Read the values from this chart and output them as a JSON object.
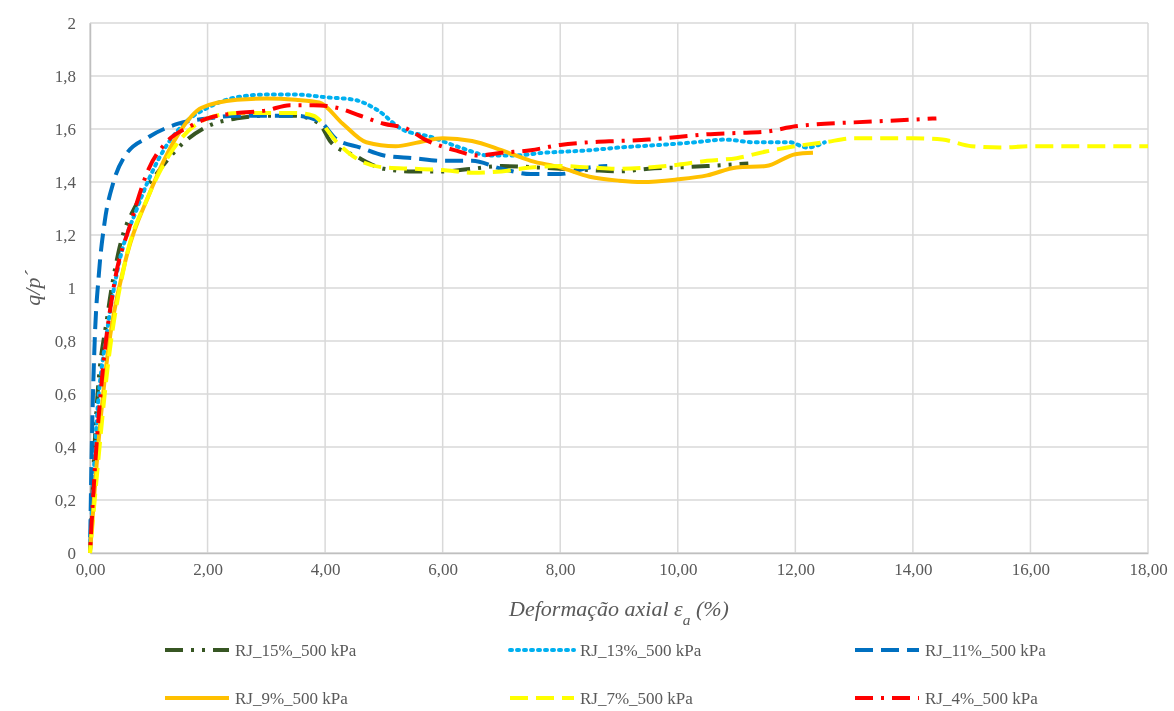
{
  "chart_data": {
    "type": "line",
    "xlabel": "Deformação axial ε$_{a}$ (%)",
    "ylabel": "q/p´",
    "xlim": [
      0,
      18
    ],
    "ylim": [
      0,
      2
    ],
    "xticks": [
      {
        "value": 0,
        "label": "0,00"
      },
      {
        "value": 2,
        "label": "2,00"
      },
      {
        "value": 4,
        "label": "4,00"
      },
      {
        "value": 6,
        "label": "6,00"
      },
      {
        "value": 8,
        "label": "8,00"
      },
      {
        "value": 10,
        "label": "10,00"
      },
      {
        "value": 12,
        "label": "12,00"
      },
      {
        "value": 14,
        "label": "14,00"
      },
      {
        "value": 16,
        "label": "16,00"
      },
      {
        "value": 18,
        "label": "18,00"
      }
    ],
    "yticks": [
      0,
      {
        "value": 0.2,
        "label": "0,2"
      },
      {
        "value": 0.4,
        "label": "0,4"
      },
      {
        "value": 0.6,
        "label": "0,6"
      },
      {
        "value": 0.8,
        "label": "0,8"
      },
      1,
      {
        "value": 1.2,
        "label": "1,2"
      },
      {
        "value": 1.4,
        "label": "1,4"
      },
      {
        "value": 1.6,
        "label": "1,6"
      },
      {
        "value": 1.8,
        "label": "1,8"
      },
      2
    ],
    "grid": true,
    "legend": "bottom",
    "marker": "none",
    "series": [
      {
        "name": "RJ_15%_500 kPa",
        "color": "#375623",
        "line_style": "dashdotdot",
        "x": [
          0,
          0.1,
          0.3,
          0.5,
          0.8,
          1.2,
          1.6,
          2.0,
          2.5,
          3.0,
          3.5,
          3.9,
          4.1,
          4.5,
          5.0,
          5.5,
          6.0,
          6.5,
          7.0,
          8.0,
          8.5,
          9.0,
          9.5,
          10.0,
          10.5,
          11.2
        ],
        "values": [
          0,
          0.5,
          0.9,
          1.15,
          1.32,
          1.45,
          1.55,
          1.61,
          1.64,
          1.65,
          1.65,
          1.62,
          1.55,
          1.5,
          1.45,
          1.44,
          1.44,
          1.45,
          1.46,
          1.45,
          1.445,
          1.44,
          1.45,
          1.455,
          1.46,
          1.47
        ]
      },
      {
        "name": "RJ_13%_500 kPa",
        "color": "#00b0f0",
        "line_style": "dotted",
        "x": [
          0,
          0.1,
          0.3,
          0.5,
          0.8,
          1.2,
          1.6,
          2.0,
          2.5,
          3.0,
          3.5,
          4.0,
          4.5,
          4.9,
          5.3,
          5.8,
          6.3,
          6.8,
          7.2,
          7.7,
          8.5,
          9.0,
          9.7,
          10.3,
          10.8,
          11.3,
          11.9,
          12.2,
          12.5
        ],
        "values": [
          0,
          0.45,
          0.85,
          1.1,
          1.3,
          1.5,
          1.62,
          1.68,
          1.72,
          1.73,
          1.73,
          1.72,
          1.71,
          1.67,
          1.6,
          1.57,
          1.53,
          1.5,
          1.5,
          1.51,
          1.52,
          1.53,
          1.54,
          1.55,
          1.56,
          1.55,
          1.55,
          1.53,
          1.55
        ]
      },
      {
        "name": "RJ_11%_500 kPa",
        "color": "#0070c0",
        "line_style": "dashed",
        "x": [
          0,
          0.03,
          0.08,
          0.15,
          0.25,
          0.4,
          0.6,
          1.0,
          1.5,
          2.0,
          2.5,
          3.0,
          3.5,
          3.9,
          4.2,
          4.6,
          5.0,
          5.5,
          6.0,
          6.5,
          7.0,
          7.5,
          8.0,
          8.5,
          8.8
        ],
        "values": [
          0,
          0.4,
          0.8,
          1.05,
          1.25,
          1.4,
          1.5,
          1.57,
          1.62,
          1.64,
          1.65,
          1.65,
          1.65,
          1.63,
          1.56,
          1.53,
          1.5,
          1.49,
          1.48,
          1.48,
          1.45,
          1.43,
          1.43,
          1.455,
          1.46
        ]
      },
      {
        "name": "RJ_9%_500 kPa",
        "color": "#ffc000",
        "line_style": "solid",
        "x": [
          0,
          0.1,
          0.3,
          0.6,
          1.0,
          1.5,
          1.9,
          2.5,
          3.0,
          3.5,
          3.9,
          4.3,
          4.7,
          5.2,
          5.6,
          6.0,
          6.5,
          7.0,
          7.5,
          8.0,
          8.5,
          9.0,
          9.4,
          10.0,
          10.5,
          11.0,
          11.5,
          12.0,
          12.3
        ],
        "values": [
          0,
          0.3,
          0.75,
          1.1,
          1.35,
          1.58,
          1.68,
          1.71,
          1.715,
          1.71,
          1.7,
          1.62,
          1.55,
          1.535,
          1.55,
          1.565,
          1.555,
          1.52,
          1.48,
          1.455,
          1.42,
          1.405,
          1.4,
          1.41,
          1.425,
          1.455,
          1.46,
          1.505,
          1.51
        ]
      },
      {
        "name": "RJ_7%_500 kPa",
        "color": "#ffff00",
        "line_style": "dashed",
        "x": [
          0,
          0.1,
          0.3,
          0.6,
          1.0,
          1.5,
          2.0,
          2.5,
          3.0,
          3.5,
          3.8,
          4.2,
          4.6,
          5.0,
          5.5,
          6.0,
          6.5,
          7.0,
          7.5,
          8.0,
          8.5,
          9.0,
          9.5,
          10.0,
          10.5,
          11.0,
          11.5,
          12.0,
          12.5,
          13.0,
          13.5,
          14.0,
          14.5,
          15.0,
          15.5,
          16.0,
          17.0,
          18.0
        ],
        "values": [
          0,
          0.25,
          0.7,
          1.1,
          1.35,
          1.55,
          1.64,
          1.66,
          1.66,
          1.66,
          1.65,
          1.55,
          1.48,
          1.455,
          1.45,
          1.445,
          1.435,
          1.44,
          1.455,
          1.46,
          1.455,
          1.45,
          1.455,
          1.465,
          1.48,
          1.49,
          1.515,
          1.535,
          1.55,
          1.565,
          1.565,
          1.565,
          1.56,
          1.535,
          1.53,
          1.535,
          1.535,
          1.535
        ]
      },
      {
        "name": "RJ_4%_500 kPa",
        "color": "#ff0000",
        "line_style": "dashdot",
        "x": [
          0,
          0.05,
          0.2,
          0.4,
          0.7,
          1.0,
          1.3,
          1.7,
          2.0,
          2.5,
          3.0,
          3.4,
          3.8,
          4.2,
          4.6,
          5.0,
          5.4,
          5.7,
          6.2,
          6.6,
          7.0,
          7.5,
          8.0,
          8.5,
          9.0,
          9.5,
          10.0,
          10.5,
          11.0,
          11.5,
          12.0,
          12.5,
          13.0,
          13.5,
          14.4
        ],
        "values": [
          0,
          0.2,
          0.65,
          1.0,
          1.25,
          1.45,
          1.55,
          1.61,
          1.64,
          1.66,
          1.67,
          1.69,
          1.69,
          1.68,
          1.65,
          1.62,
          1.6,
          1.56,
          1.52,
          1.5,
          1.51,
          1.52,
          1.54,
          1.55,
          1.555,
          1.56,
          1.57,
          1.58,
          1.585,
          1.59,
          1.61,
          1.62,
          1.625,
          1.63,
          1.64
        ]
      }
    ]
  }
}
